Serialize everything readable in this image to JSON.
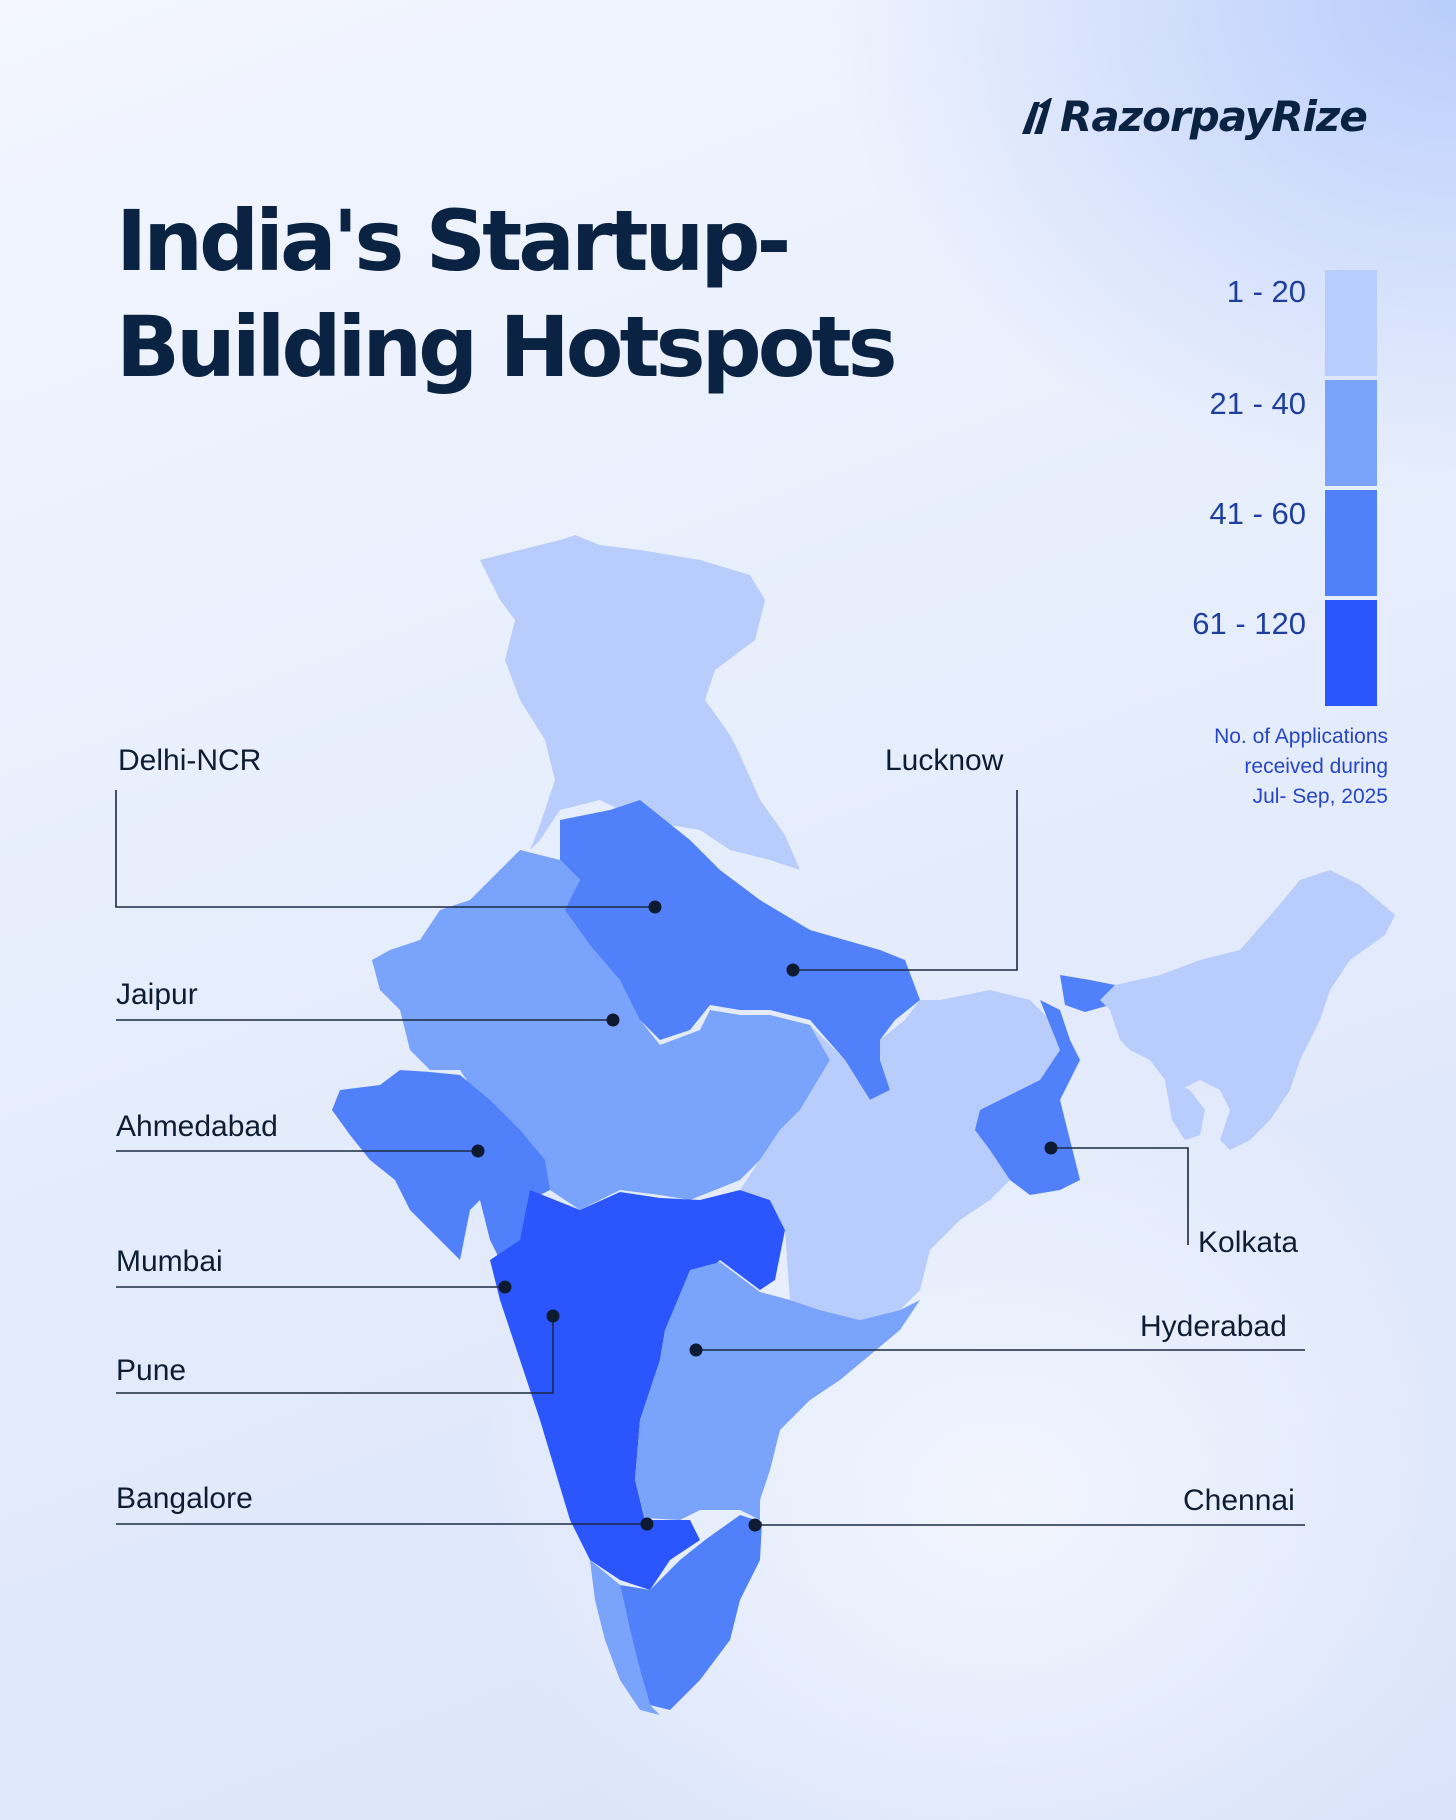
{
  "brand": {
    "logo_text": "RazorpayRize",
    "logo_mark": "razorpay-slash-mark"
  },
  "title_lines": [
    "India's Startup-",
    "Building Hotspots"
  ],
  "legend": {
    "ranges": [
      {
        "label": "1 - 20",
        "color": "#b8cdfb"
      },
      {
        "label": "21 - 40",
        "color": "#7aa3fb"
      },
      {
        "label": "41 - 60",
        "color": "#5081fb"
      },
      {
        "label": "61 - 120",
        "color": "#2b55fd"
      }
    ],
    "note_lines": [
      "No. of Applications",
      "received during",
      "Jul- Sep, 2025"
    ]
  },
  "cities": [
    {
      "name": "Delhi-NCR",
      "side": "left"
    },
    {
      "name": "Lucknow",
      "side": "left"
    },
    {
      "name": "Jaipur",
      "side": "left"
    },
    {
      "name": "Ahmedabad",
      "side": "left"
    },
    {
      "name": "Mumbai",
      "side": "left"
    },
    {
      "name": "Pune",
      "side": "left"
    },
    {
      "name": "Bangalore",
      "side": "left"
    },
    {
      "name": "Kolkata",
      "side": "right"
    },
    {
      "name": "Hyderabad",
      "side": "right"
    },
    {
      "name": "Chennai",
      "side": "right"
    }
  ],
  "colors": {
    "outline_dark": "#0b2342",
    "leader_line": "#1a2a44",
    "dot": "#0e1a30"
  }
}
